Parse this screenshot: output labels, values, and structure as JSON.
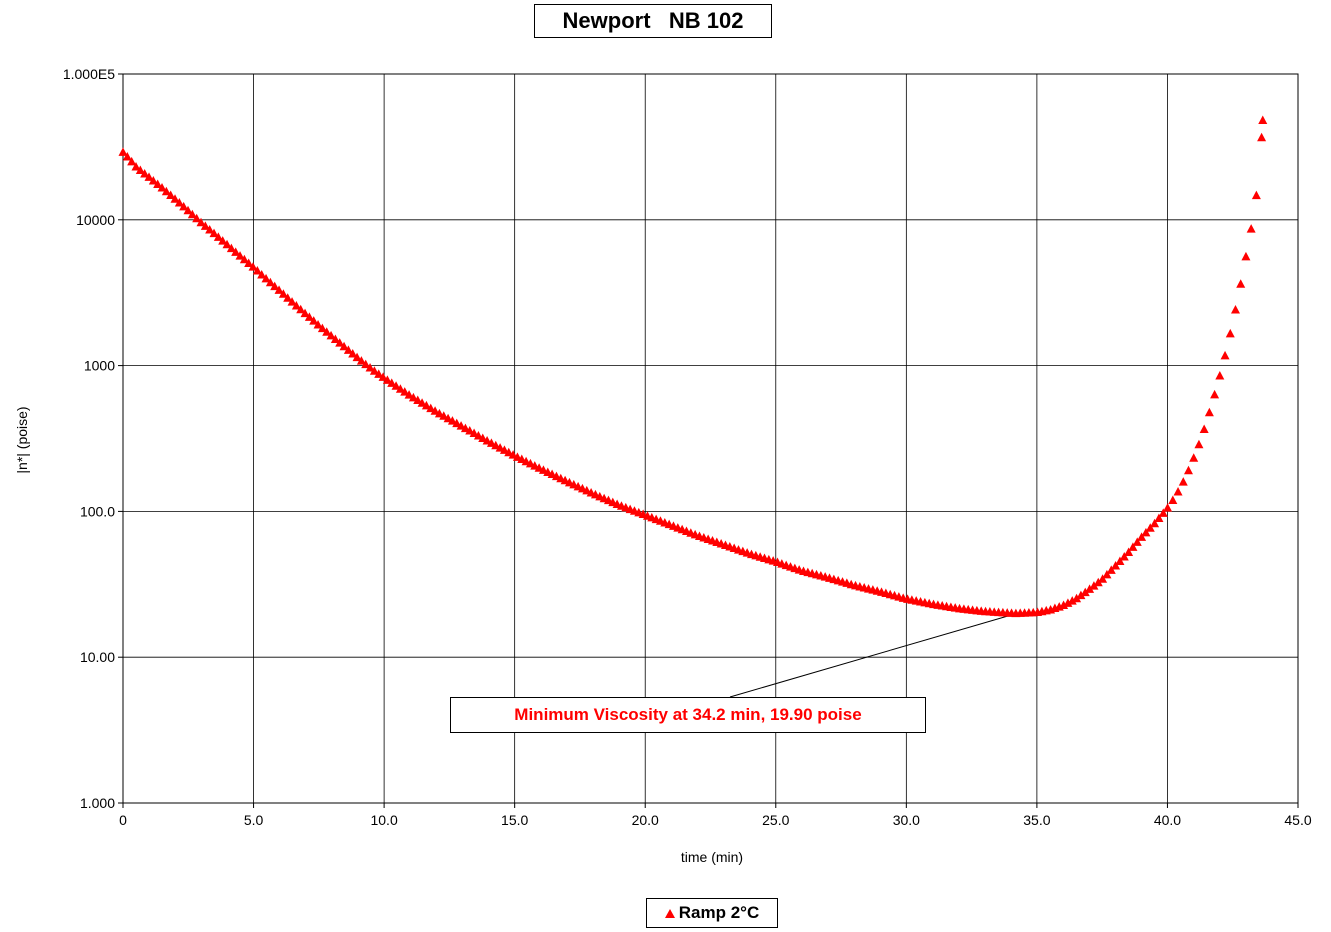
{
  "chart_data": {
    "type": "scatter",
    "title": "Newport   NB 102",
    "xlabel": "time (min)",
    "ylabel": "|n*| (poise)",
    "xlim": [
      0,
      45
    ],
    "ylim": [
      1,
      100000
    ],
    "yscale": "log",
    "grid": true,
    "legend_position": "bottom-center",
    "x_ticks": [
      "0",
      "5.0",
      "10.0",
      "15.0",
      "20.0",
      "25.0",
      "30.0",
      "35.0",
      "40.0",
      "45.0"
    ],
    "y_ticks": [
      "1.000",
      "10.00",
      "100.0",
      "1000",
      "10000",
      "1.000E5"
    ],
    "annotation": {
      "text": "Minimum Viscosity at 34.2 min, 19.90 poise",
      "x": 34.2,
      "y": 19.9
    },
    "colors": {
      "series": "#ff0000",
      "grid": "#000000",
      "annotation_text": "#ff0000"
    },
    "series": [
      {
        "name": "Ramp 2°C",
        "marker": "triangle",
        "x": [
          0,
          0.25,
          0.5,
          1,
          1.5,
          2,
          2.5,
          3,
          3.5,
          4,
          4.5,
          5,
          5.5,
          6,
          6.5,
          7,
          7.5,
          8,
          8.5,
          9,
          9.5,
          10,
          11,
          12,
          13,
          14,
          15,
          16,
          17,
          18,
          19,
          20,
          21,
          22,
          23,
          24,
          25,
          26,
          27,
          28,
          29,
          30,
          31,
          32,
          33,
          34,
          34.2,
          35,
          35.5,
          36,
          36.5,
          37,
          37.5,
          38,
          38.5,
          39,
          39.5,
          40,
          40.25,
          40.5,
          40.75,
          41,
          41.25,
          41.5,
          41.75,
          42,
          42.25,
          42.5,
          42.75,
          43,
          43.25,
          43.5,
          43.65
        ],
        "y": [
          29000,
          26000,
          23000,
          19500,
          16500,
          13800,
          11500,
          9500,
          8000,
          6700,
          5600,
          4700,
          3900,
          3250,
          2700,
          2250,
          1880,
          1580,
          1330,
          1120,
          950,
          820,
          620,
          480,
          380,
          300,
          240,
          195,
          160,
          132,
          110,
          94,
          80,
          68,
          59,
          51,
          45,
          39,
          35,
          31,
          28,
          25,
          23,
          21.5,
          20.5,
          20,
          19.9,
          20.2,
          21,
          22.5,
          25,
          29,
          34,
          42,
          52,
          66,
          82,
          105,
          122,
          145,
          180,
          230,
          300,
          410,
          580,
          840,
          1250,
          1950,
          3200,
          5500,
          9500,
          19000,
          48000
        ]
      }
    ]
  }
}
